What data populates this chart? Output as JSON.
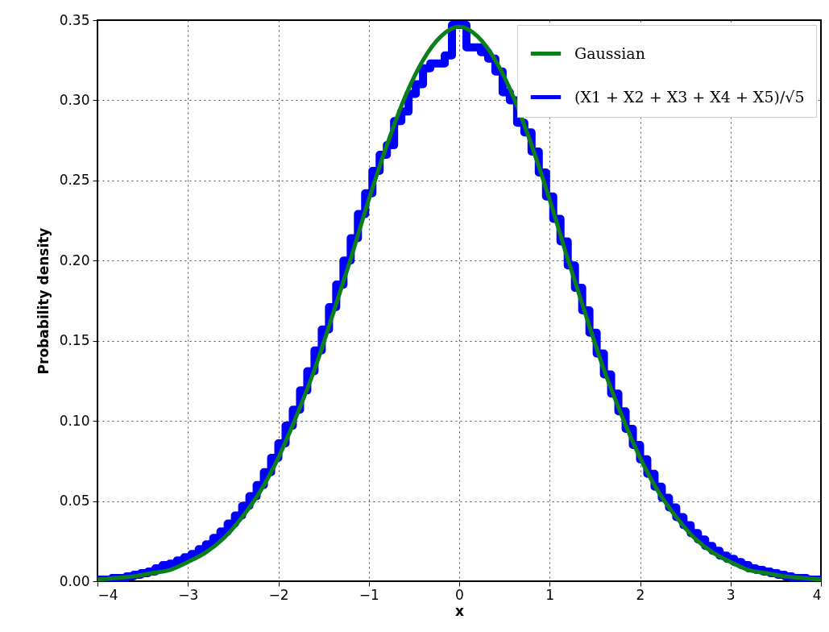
{
  "chart_data": {
    "type": "line",
    "xlabel": "x",
    "ylabel": "Probability density",
    "xlim": [
      -4,
      4
    ],
    "ylim": [
      0,
      0.35
    ],
    "xticks": [
      {
        "value": -4,
        "label": "−4"
      },
      {
        "value": -3,
        "label": "−3"
      },
      {
        "value": -2,
        "label": "−2"
      },
      {
        "value": -1,
        "label": "−1"
      },
      0,
      1,
      2,
      3,
      4
    ],
    "yticks": [
      {
        "value": 0,
        "label": "0.00"
      },
      0.05,
      {
        "value": 0.1,
        "label": "0.10"
      },
      0.15,
      {
        "value": 0.2,
        "label": "0.20"
      },
      0.25,
      {
        "value": 0.3,
        "label": "0.30"
      },
      0.35
    ],
    "grid": true,
    "legend": "top right",
    "series": [
      {
        "name": "Gaussian",
        "color": "#0a7f1a",
        "x": [
          -4,
          -3.8,
          -3.6,
          -3.4,
          -3.2,
          -3,
          -2.8,
          -2.6,
          -2.4,
          -2.2,
          -2,
          -1.8,
          -1.6,
          -1.4,
          -1.2,
          -1,
          -0.8,
          -0.6,
          -0.4,
          -0.2,
          0,
          0.2,
          0.4,
          0.6,
          0.8,
          1,
          1.2,
          1.4,
          1.6,
          1.8,
          2,
          2.2,
          2.4,
          2.6,
          2.8,
          3,
          3.2,
          3.4,
          3.6,
          3.8,
          4
        ],
        "values": [
          0.001,
          0.002,
          0.003,
          0.005,
          0.007,
          0.012,
          0.018,
          0.027,
          0.04,
          0.056,
          0.077,
          0.103,
          0.132,
          0.166,
          0.201,
          0.238,
          0.272,
          0.302,
          0.325,
          0.34,
          0.346,
          0.34,
          0.325,
          0.302,
          0.272,
          0.238,
          0.201,
          0.166,
          0.132,
          0.103,
          0.077,
          0.056,
          0.04,
          0.027,
          0.018,
          0.012,
          0.007,
          0.005,
          0.003,
          0.002,
          0.001
        ]
      },
      {
        "name": "(X1 + X2 + X3 + X4 + X5)/√5",
        "type": "step",
        "color": "#0000ff",
        "x": [
          -4,
          -3.92,
          -3.84,
          -3.76,
          -3.68,
          -3.6,
          -3.52,
          -3.44,
          -3.36,
          -3.28,
          -3.2,
          -3.12,
          -3.04,
          -2.96,
          -2.88,
          -2.8,
          -2.72,
          -2.64,
          -2.56,
          -2.48,
          -2.4,
          -2.32,
          -2.24,
          -2.16,
          -2.08,
          -2,
          -1.92,
          -1.84,
          -1.76,
          -1.68,
          -1.6,
          -1.52,
          -1.44,
          -1.36,
          -1.28,
          -1.2,
          -1.12,
          -1.04,
          -0.96,
          -0.88,
          -0.8,
          -0.72,
          -0.64,
          -0.56,
          -0.48,
          -0.4,
          -0.32,
          -0.24,
          -0.16,
          -0.08,
          0,
          0.08,
          0.16,
          0.24,
          0.32,
          0.4,
          0.48,
          0.56,
          0.64,
          0.72,
          0.8,
          0.88,
          0.96,
          1.04,
          1.12,
          1.2,
          1.28,
          1.36,
          1.44,
          1.52,
          1.6,
          1.68,
          1.76,
          1.84,
          1.92,
          2,
          2.08,
          2.16,
          2.24,
          2.32,
          2.4,
          2.48,
          2.56,
          2.64,
          2.72,
          2.8,
          2.88,
          2.96,
          3.04,
          3.12,
          3.2,
          3.28,
          3.36,
          3.44,
          3.52,
          3.6,
          3.68,
          3.76,
          3.84,
          3.92,
          4
        ],
        "values": [
          0.001,
          0.001,
          0.002,
          0.002,
          0.003,
          0.004,
          0.005,
          0.006,
          0.008,
          0.01,
          0.011,
          0.013,
          0.015,
          0.017,
          0.02,
          0.023,
          0.027,
          0.031,
          0.036,
          0.041,
          0.047,
          0.053,
          0.06,
          0.068,
          0.077,
          0.086,
          0.097,
          0.107,
          0.119,
          0.131,
          0.144,
          0.157,
          0.171,
          0.185,
          0.2,
          0.214,
          0.229,
          0.242,
          0.256,
          0.266,
          0.272,
          0.287,
          0.293,
          0.304,
          0.31,
          0.32,
          0.323,
          0.323,
          0.328,
          0.347,
          0.347,
          0.333,
          0.333,
          0.33,
          0.326,
          0.318,
          0.305,
          0.3,
          0.286,
          0.28,
          0.268,
          0.255,
          0.24,
          0.226,
          0.212,
          0.197,
          0.183,
          0.169,
          0.155,
          0.142,
          0.129,
          0.117,
          0.106,
          0.095,
          0.085,
          0.076,
          0.067,
          0.059,
          0.052,
          0.046,
          0.04,
          0.035,
          0.03,
          0.026,
          0.022,
          0.019,
          0.016,
          0.014,
          0.012,
          0.01,
          0.008,
          0.007,
          0.006,
          0.005,
          0.004,
          0.003,
          0.002,
          0.002,
          0.001,
          0.001,
          0.001
        ]
      }
    ]
  }
}
